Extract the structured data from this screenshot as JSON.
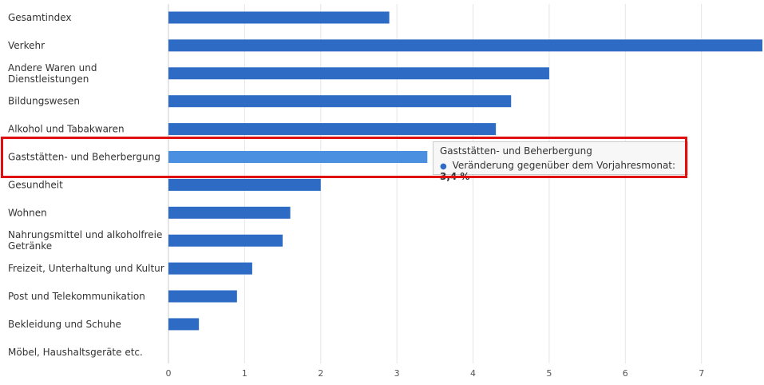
{
  "chart_data": {
    "type": "bar",
    "orientation": "horizontal",
    "categories": [
      [
        "Gesamtindex"
      ],
      [
        "Verkehr"
      ],
      [
        "Andere Waren und",
        "Dienstleistungen"
      ],
      [
        "Bildungswesen"
      ],
      [
        "Alkohol und Tabakwaren"
      ],
      [
        "Gaststätten- und Beherbergung"
      ],
      [
        "Gesundheit"
      ],
      [
        "Wohnen"
      ],
      [
        "Nahrungsmittel und alkoholfreie",
        "Getränke"
      ],
      [
        "Freizeit, Unterhaltung und Kultur"
      ],
      [
        "Post und Telekommunikation"
      ],
      [
        "Bekleidung und Schuhe"
      ],
      [
        "Möbel, Haushaltsgeräte etc."
      ]
    ],
    "values": [
      2.9,
      7.8,
      5.0,
      4.5,
      4.3,
      3.4,
      2.0,
      1.6,
      1.5,
      1.1,
      0.9,
      0.4,
      0
    ],
    "xlim": [
      0,
      7.8
    ],
    "xticks": [
      "0",
      "1",
      "2",
      "3",
      "4",
      "5",
      "6",
      "7"
    ],
    "grid": true,
    "highlighted_index": 5,
    "colors": {
      "bar": "#2e6bc4",
      "bar_highlight": "#4a8fe0",
      "grid": "#e6e6e6",
      "highlight_box": "#e01010"
    }
  },
  "tooltip": {
    "title": "Gaststätten- und Beherbergung",
    "series_label": "Veränderung gegenüber dem Vorjahresmonat:",
    "value": "3,4 %"
  }
}
